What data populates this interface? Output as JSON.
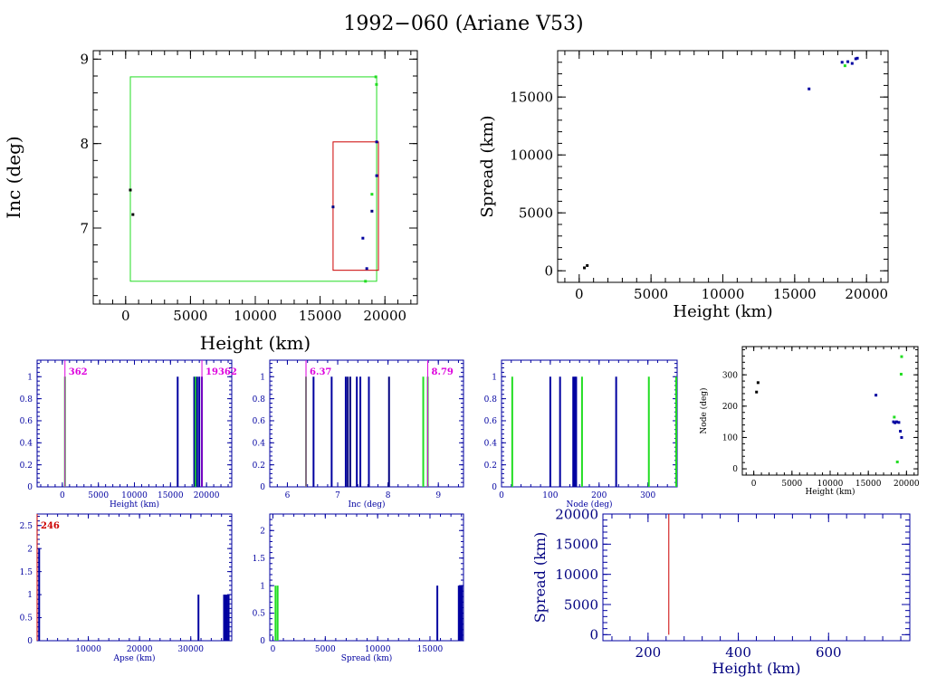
{
  "page": {
    "title": "1992−060 (Ariane V53)"
  },
  "colors": {
    "black": "#000000",
    "blue": "#0000a0",
    "green": "#22dd22",
    "red": "#cc0000",
    "magenta": "#dd00dd",
    "navy": "#000080"
  },
  "chart_data": [
    {
      "id": "inc-vs-height",
      "type": "scatter",
      "xlabel": "Height (km)",
      "ylabel": "Inc (deg)",
      "xlim": [
        -2500,
        22500
      ],
      "ylim": [
        6.1,
        9.1
      ],
      "xticks": [
        0,
        5000,
        10000,
        15000,
        20000
      ],
      "yticks": [
        7,
        8,
        9
      ],
      "boxes": [
        {
          "color": "green",
          "x": [
            362,
            19362
          ],
          "y": [
            6.37,
            8.79
          ]
        },
        {
          "color": "red",
          "x": [
            16000,
            19500
          ],
          "y": [
            6.5,
            8.02
          ]
        }
      ],
      "points": [
        {
          "x": 362,
          "y": 7.45,
          "c": "black"
        },
        {
          "x": 560,
          "y": 7.16,
          "c": "black"
        },
        {
          "x": 16000,
          "y": 7.25,
          "c": "navy"
        },
        {
          "x": 18300,
          "y": 6.88,
          "c": "blue"
        },
        {
          "x": 18600,
          "y": 6.52,
          "c": "blue"
        },
        {
          "x": 18500,
          "y": 6.37,
          "c": "green"
        },
        {
          "x": 19000,
          "y": 7.2,
          "c": "navy"
        },
        {
          "x": 19000,
          "y": 7.4,
          "c": "green"
        },
        {
          "x": 19362,
          "y": 7.62,
          "c": "blue"
        },
        {
          "x": 19362,
          "y": 8.02,
          "c": "blue"
        },
        {
          "x": 19300,
          "y": 8.79,
          "c": "green"
        },
        {
          "x": 19350,
          "y": 8.7,
          "c": "green"
        }
      ]
    },
    {
      "id": "spread-vs-height",
      "type": "scatter",
      "xlabel": "Height (km)",
      "ylabel": "Spread (km)",
      "xlim": [
        -1500,
        21500
      ],
      "ylim": [
        -1000,
        19000
      ],
      "xticks": [
        0,
        5000,
        10000,
        15000,
        20000
      ],
      "yticks": [
        0,
        5000,
        10000,
        15000
      ],
      "points": [
        {
          "x": 362,
          "y": 250,
          "c": "black"
        },
        {
          "x": 560,
          "y": 450,
          "c": "black"
        },
        {
          "x": 16000,
          "y": 15700,
          "c": "blue"
        },
        {
          "x": 18300,
          "y": 18000,
          "c": "blue"
        },
        {
          "x": 18500,
          "y": 17700,
          "c": "green"
        },
        {
          "x": 18700,
          "y": 18050,
          "c": "blue"
        },
        {
          "x": 19000,
          "y": 17900,
          "c": "blue"
        },
        {
          "x": 19250,
          "y": 18300,
          "c": "blue"
        },
        {
          "x": 19362,
          "y": 18350,
          "c": "blue"
        }
      ]
    },
    {
      "id": "height-hist",
      "type": "bar",
      "xlabel": "Height (km)",
      "ylabel": "",
      "xlim": [
        -3500,
        23500
      ],
      "ylim": [
        0,
        1.15
      ],
      "xticks": [
        0,
        5000,
        10000,
        15000,
        20000
      ],
      "yticks": [
        0,
        0.2,
        0.4,
        0.6,
        0.8,
        1
      ],
      "markers": [
        {
          "x": 362,
          "label": "362"
        },
        {
          "x": 19362,
          "label": "19362"
        }
      ],
      "bars": [
        {
          "x": 362,
          "v": 1,
          "c": "green"
        },
        {
          "x": 16000,
          "v": 1,
          "c": "blue"
        },
        {
          "x": 18300,
          "v": 1,
          "c": "blue"
        },
        {
          "x": 18500,
          "v": 1,
          "c": "green"
        },
        {
          "x": 18700,
          "v": 1,
          "c": "blue"
        },
        {
          "x": 19000,
          "v": 1,
          "c": "blue"
        },
        {
          "x": 19362,
          "v": 1,
          "c": "blue"
        }
      ]
    },
    {
      "id": "inc-hist",
      "type": "bar",
      "xlabel": "Inc (deg)",
      "ylabel": "",
      "xlim": [
        5.65,
        9.5
      ],
      "ylim": [
        0,
        1.15
      ],
      "xticks": [
        6,
        7,
        8,
        9
      ],
      "yticks": [
        0,
        0.2,
        0.4,
        0.6,
        0.8,
        1
      ],
      "markers": [
        {
          "x": 6.37,
          "label": "6.37"
        },
        {
          "x": 8.79,
          "label": "8.79"
        }
      ],
      "bars": [
        {
          "x": 6.37,
          "v": 1,
          "c": "green"
        },
        {
          "x": 6.52,
          "v": 1,
          "c": "blue"
        },
        {
          "x": 6.88,
          "v": 1,
          "c": "blue"
        },
        {
          "x": 7.16,
          "v": 1,
          "c": "blue"
        },
        {
          "x": 7.2,
          "v": 1,
          "c": "navy"
        },
        {
          "x": 7.25,
          "v": 1,
          "c": "navy"
        },
        {
          "x": 7.38,
          "v": 1,
          "c": "blue"
        },
        {
          "x": 7.45,
          "v": 1,
          "c": "blue"
        },
        {
          "x": 7.62,
          "v": 1,
          "c": "blue"
        },
        {
          "x": 8.02,
          "v": 1,
          "c": "navy"
        },
        {
          "x": 8.7,
          "v": 1,
          "c": "green"
        },
        {
          "x": 8.79,
          "v": 1,
          "c": "green"
        }
      ]
    },
    {
      "id": "node-hist",
      "type": "bar",
      "xlabel": "Node (deg)",
      "ylabel": "",
      "xlim": [
        0,
        360
      ],
      "ylim": [
        0,
        1.15
      ],
      "xticks": [
        0,
        100,
        200,
        300
      ],
      "yticks": [
        0,
        0.2,
        0.4,
        0.6,
        0.8,
        1
      ],
      "bars": [
        {
          "x": 22,
          "v": 1,
          "c": "green"
        },
        {
          "x": 100,
          "v": 1,
          "c": "blue"
        },
        {
          "x": 120,
          "v": 1,
          "c": "blue"
        },
        {
          "x": 147,
          "v": 1,
          "c": "blue"
        },
        {
          "x": 150,
          "v": 1,
          "c": "blue"
        },
        {
          "x": 153,
          "v": 1,
          "c": "blue"
        },
        {
          "x": 165,
          "v": 1,
          "c": "green"
        },
        {
          "x": 235,
          "v": 1,
          "c": "blue"
        },
        {
          "x": 302,
          "v": 1,
          "c": "green"
        },
        {
          "x": 358,
          "v": 1,
          "c": "green"
        }
      ]
    },
    {
      "id": "node-vs-height",
      "type": "scatter",
      "xlabel": "Height (km)",
      "ylabel": "Node (deg)",
      "xlim": [
        -1500,
        21500
      ],
      "ylim": [
        -20,
        390
      ],
      "xticks": [
        0,
        5000,
        10000,
        15000,
        20000
      ],
      "yticks": [
        0,
        100,
        200,
        300
      ],
      "points": [
        {
          "x": 362,
          "y": 245,
          "c": "black"
        },
        {
          "x": 560,
          "y": 275,
          "c": "black"
        },
        {
          "x": 16000,
          "y": 235,
          "c": "blue"
        },
        {
          "x": 18300,
          "y": 150,
          "c": "blue"
        },
        {
          "x": 18400,
          "y": 165,
          "c": "green"
        },
        {
          "x": 18500,
          "y": 147,
          "c": "blue"
        },
        {
          "x": 18700,
          "y": 150,
          "c": "blue"
        },
        {
          "x": 18800,
          "y": 22,
          "c": "green"
        },
        {
          "x": 19000,
          "y": 148,
          "c": "blue"
        },
        {
          "x": 19200,
          "y": 120,
          "c": "blue"
        },
        {
          "x": 19300,
          "y": 302,
          "c": "green"
        },
        {
          "x": 19362,
          "y": 100,
          "c": "blue"
        },
        {
          "x": 19362,
          "y": 358,
          "c": "green"
        }
      ]
    },
    {
      "id": "apse-hist",
      "type": "bar",
      "xlabel": "Apse (km)",
      "ylabel": "",
      "xlim": [
        0,
        38000
      ],
      "ylim": [
        0,
        2.75
      ],
      "xticks": [
        10000,
        20000,
        30000
      ],
      "yticks": [
        0,
        0.5,
        1,
        1.5,
        2,
        2.5
      ],
      "markers": [
        {
          "x": 0,
          "label": "246"
        }
      ],
      "bars": [
        {
          "x": 400,
          "v": 2,
          "c": "blue"
        },
        {
          "x": 31500,
          "v": 1,
          "c": "blue"
        },
        {
          "x": 36500,
          "v": 1,
          "c": "blue"
        },
        {
          "x": 36800,
          "v": 1,
          "c": "blue"
        },
        {
          "x": 37100,
          "v": 1,
          "c": "blue"
        },
        {
          "x": 37400,
          "v": 1,
          "c": "blue"
        }
      ]
    },
    {
      "id": "spread-hist",
      "type": "bar",
      "xlabel": "Spread (km)",
      "ylabel": "",
      "xlim": [
        -300,
        18200
      ],
      "ylim": [
        0,
        2.3
      ],
      "xticks": [
        0,
        5000,
        10000,
        15000
      ],
      "yticks": [
        0,
        0.5,
        1,
        1.5,
        2
      ],
      "bars": [
        {
          "x": 250,
          "v": 1,
          "c": "green"
        },
        {
          "x": 450,
          "v": 1,
          "c": "green"
        },
        {
          "x": 15700,
          "v": 1,
          "c": "blue"
        },
        {
          "x": 17750,
          "v": 1,
          "c": "blue"
        },
        {
          "x": 17850,
          "v": 1,
          "c": "blue"
        },
        {
          "x": 17950,
          "v": 1,
          "c": "blue"
        },
        {
          "x": 18050,
          "v": 1,
          "c": "blue"
        }
      ]
    },
    {
      "id": "spread-vs-height-low",
      "type": "line",
      "xlabel": "Height (km)",
      "ylabel": "Spread (km)",
      "xlim": [
        100,
        780
      ],
      "ylim": [
        -1000,
        20000
      ],
      "xticks": [
        200,
        400,
        600
      ],
      "yticks": [
        0,
        5000,
        10000,
        15000,
        20000
      ],
      "vline": {
        "x": 246,
        "y0": 0,
        "y1": 20000,
        "c": "red"
      }
    }
  ]
}
